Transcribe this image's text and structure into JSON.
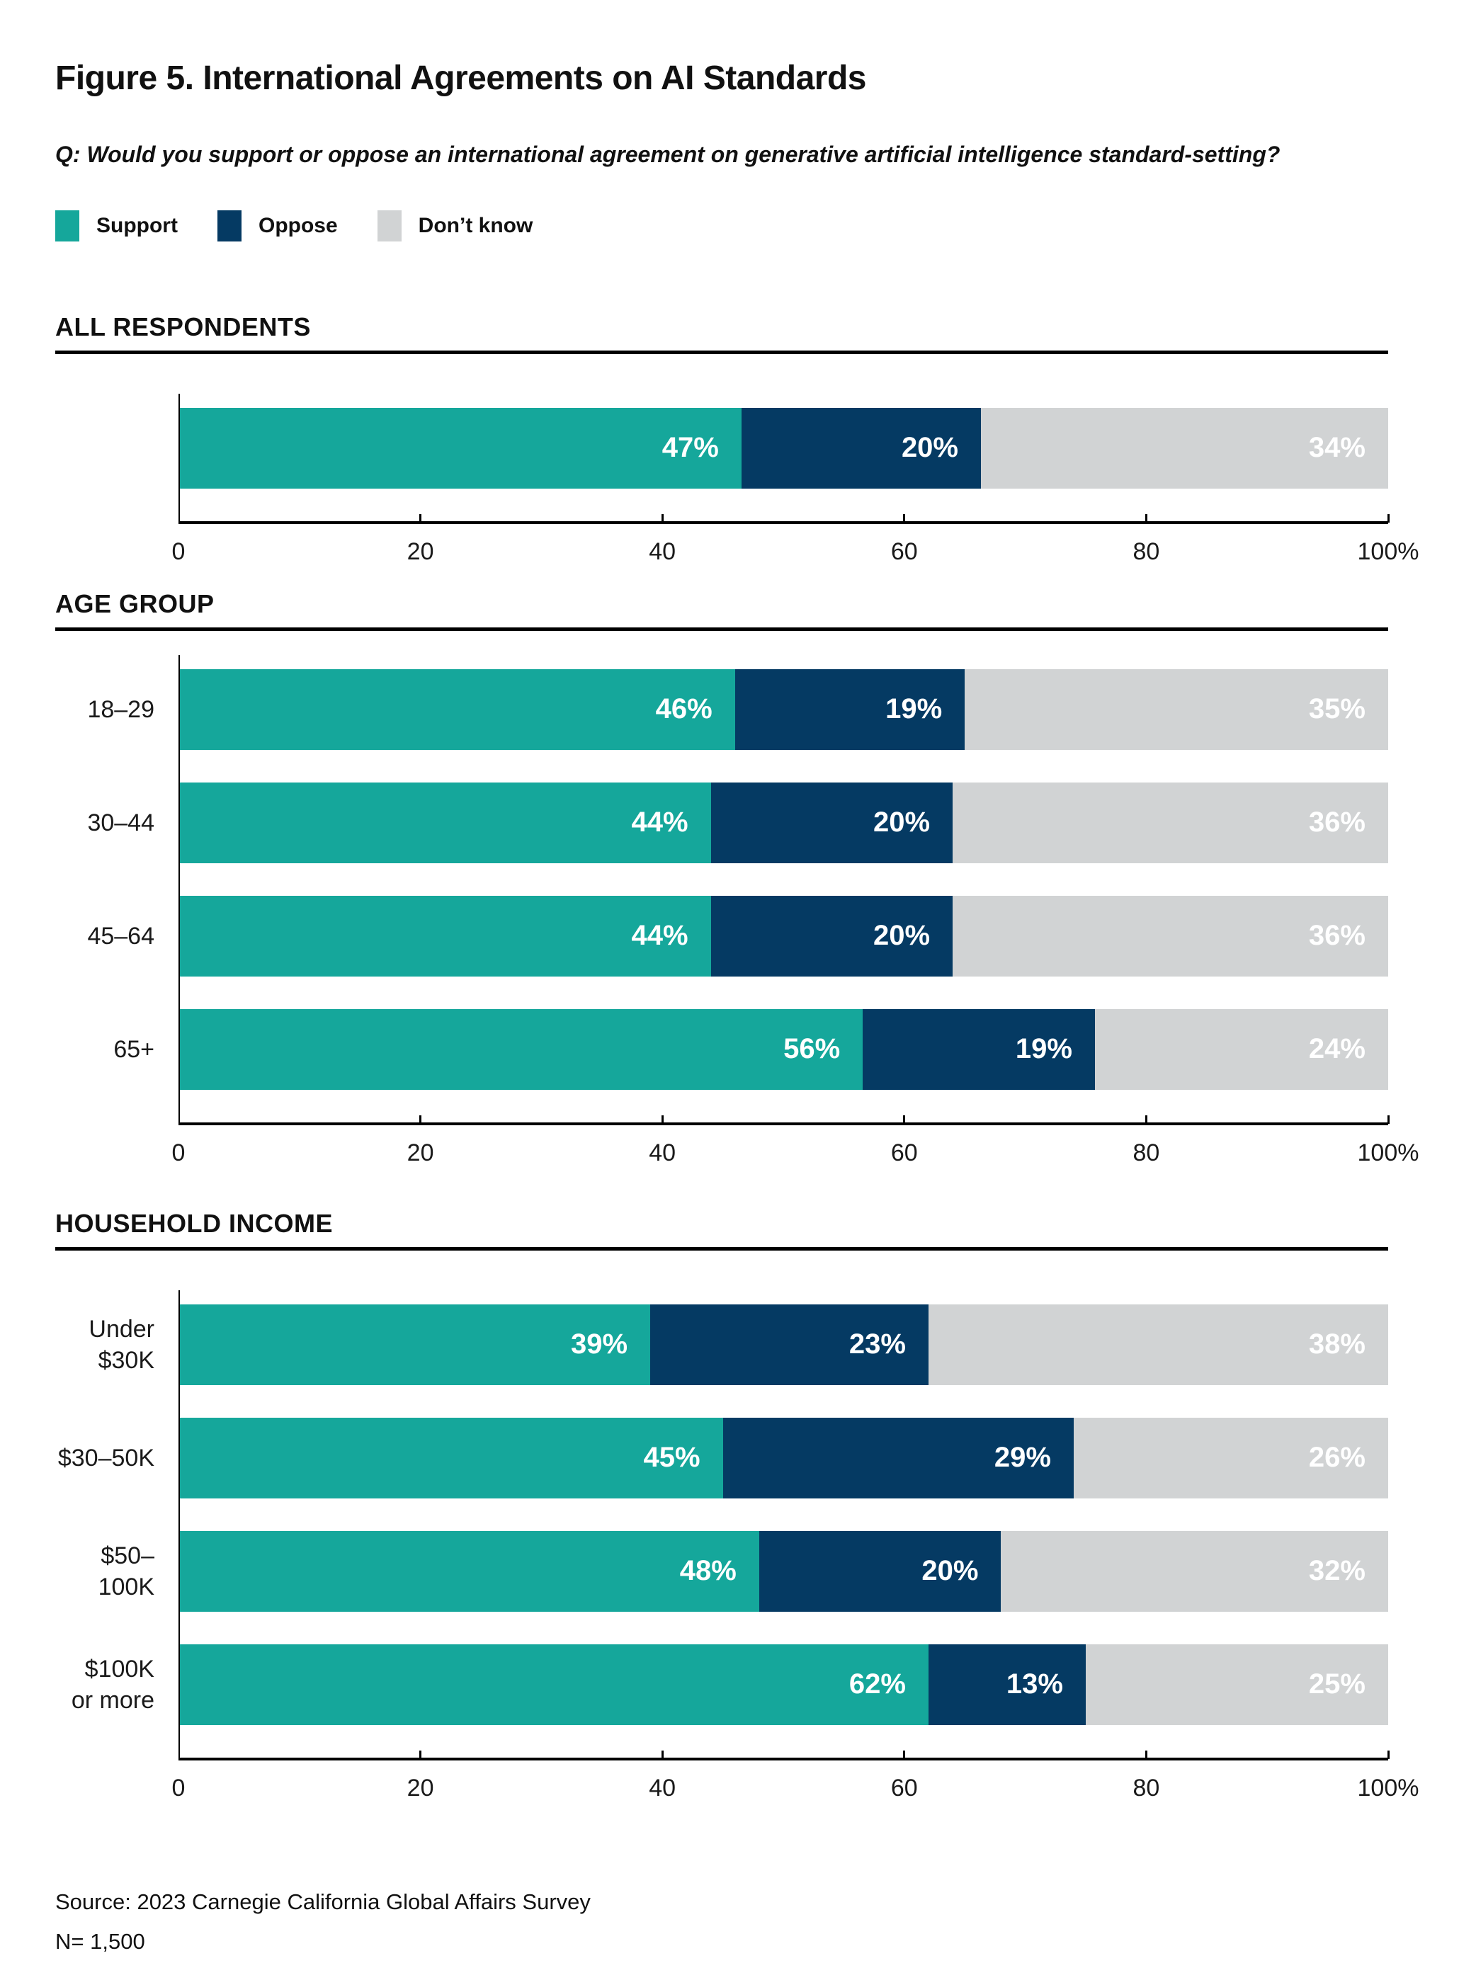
{
  "page": {
    "title": "Figure 5. International Agreements on AI Standards",
    "question": "Q: Would you support or oppose an international agreement on generative artificial intelligence standard-setting?",
    "source_line1": "Source: 2023 Carnegie California Global Affairs Survey",
    "source_line2": "N= 1,500"
  },
  "colors": {
    "support": "#15A79B",
    "oppose": "#053A63",
    "dont_know": "#D1D3D4",
    "axis": "#000000",
    "bar_value_text": "#FFFFFF"
  },
  "legend": [
    {
      "label": "Support",
      "color": "#15A79B"
    },
    {
      "label": "Oppose",
      "color": "#053A63"
    },
    {
      "label": "Don’t know",
      "color": "#D1D3D4"
    }
  ],
  "axis": {
    "xlim": [
      0,
      100
    ],
    "tick_values": [
      0,
      20,
      40,
      60,
      80,
      100
    ],
    "tick_labels": [
      "0",
      "20",
      "40",
      "60",
      "80",
      "100%"
    ]
  },
  "chart_data": [
    {
      "type": "bar",
      "stacked": true,
      "orientation": "horizontal",
      "title": "ALL RESPONDENTS",
      "categories": [
        ""
      ],
      "series": [
        {
          "name": "Support",
          "values": [
            47
          ]
        },
        {
          "name": "Oppose",
          "values": [
            20
          ]
        },
        {
          "name": "Don’t know",
          "values": [
            34
          ]
        }
      ],
      "value_label_suffix": "%",
      "xlim": [
        0,
        100
      ],
      "grid": false,
      "legend_position": "top"
    },
    {
      "type": "bar",
      "stacked": true,
      "orientation": "horizontal",
      "title": "AGE GROUP",
      "categories": [
        "18–29",
        "30–44",
        "45–64",
        "65+"
      ],
      "series": [
        {
          "name": "Support",
          "values": [
            46,
            44,
            44,
            56
          ]
        },
        {
          "name": "Oppose",
          "values": [
            19,
            20,
            20,
            19
          ]
        },
        {
          "name": "Don’t know",
          "values": [
            35,
            36,
            36,
            24
          ]
        }
      ],
      "value_label_suffix": "%",
      "xlim": [
        0,
        100
      ],
      "grid": false,
      "legend_position": "top"
    },
    {
      "type": "bar",
      "stacked": true,
      "orientation": "horizontal",
      "title": "HOUSEHOLD INCOME",
      "categories": [
        "Under $30K",
        "$30–50K",
        "$50–100K",
        "$100K\nor more"
      ],
      "series": [
        {
          "name": "Support",
          "values": [
            39,
            45,
            48,
            62
          ]
        },
        {
          "name": "Oppose",
          "values": [
            23,
            29,
            20,
            13
          ]
        },
        {
          "name": "Don’t know",
          "values": [
            38,
            26,
            32,
            25
          ]
        }
      ],
      "value_label_suffix": "%",
      "xlim": [
        0,
        100
      ],
      "grid": false,
      "legend_position": "top"
    }
  ]
}
